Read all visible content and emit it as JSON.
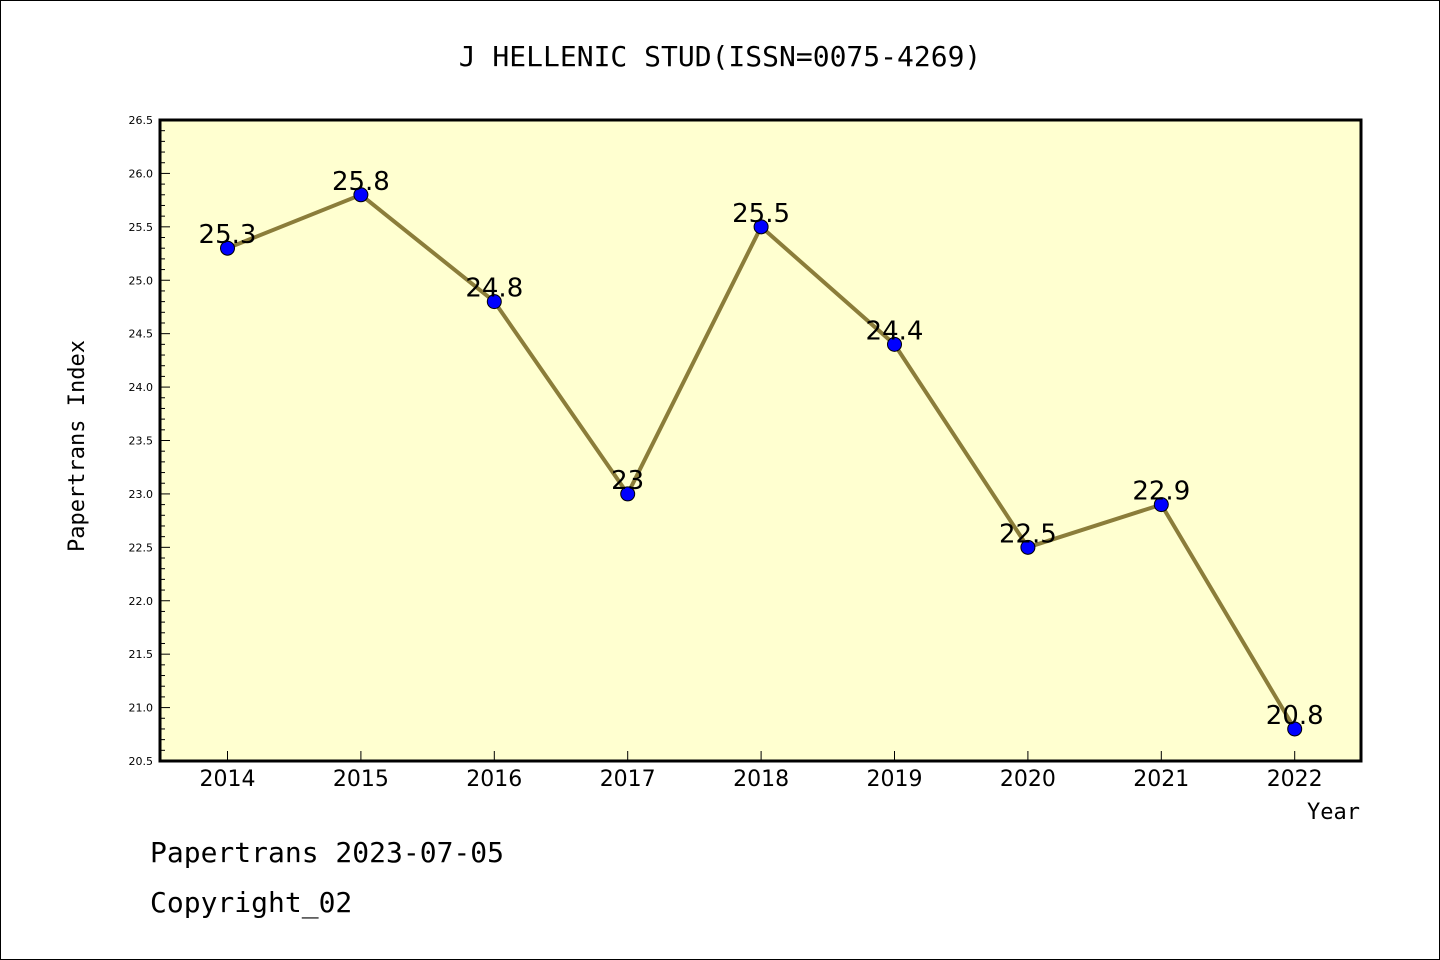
{
  "chart_data": {
    "type": "line",
    "title": "J HELLENIC STUD(ISSN=0075-4269)",
    "xlabel": "Year",
    "ylabel": "Papertrans Index",
    "categories": [
      "2014",
      "2015",
      "2016",
      "2017",
      "2018",
      "2019",
      "2020",
      "2021",
      "2022"
    ],
    "values": [
      25.3,
      25.8,
      24.8,
      23,
      25.5,
      24.4,
      22.5,
      22.9,
      20.8
    ],
    "data_labels": [
      "25.3",
      "25.8",
      "24.8",
      "23",
      "25.5",
      "24.4",
      "22.5",
      "22.9",
      "20.8"
    ],
    "ylim": [
      20.5,
      26.5
    ],
    "yticks": [
      "20.5",
      "21.0",
      "21.5",
      "22.0",
      "22.5",
      "23.0",
      "23.5",
      "24.0",
      "24.5",
      "25.0",
      "25.5",
      "26.0",
      "26.5"
    ],
    "grid": false,
    "line_color": "#8b7d3a",
    "marker_color": "#0000ff",
    "plot_background": "#ffffd0"
  },
  "footer": {
    "line1": "Papertrans 2023-07-05",
    "line2": "Copyright_02"
  }
}
